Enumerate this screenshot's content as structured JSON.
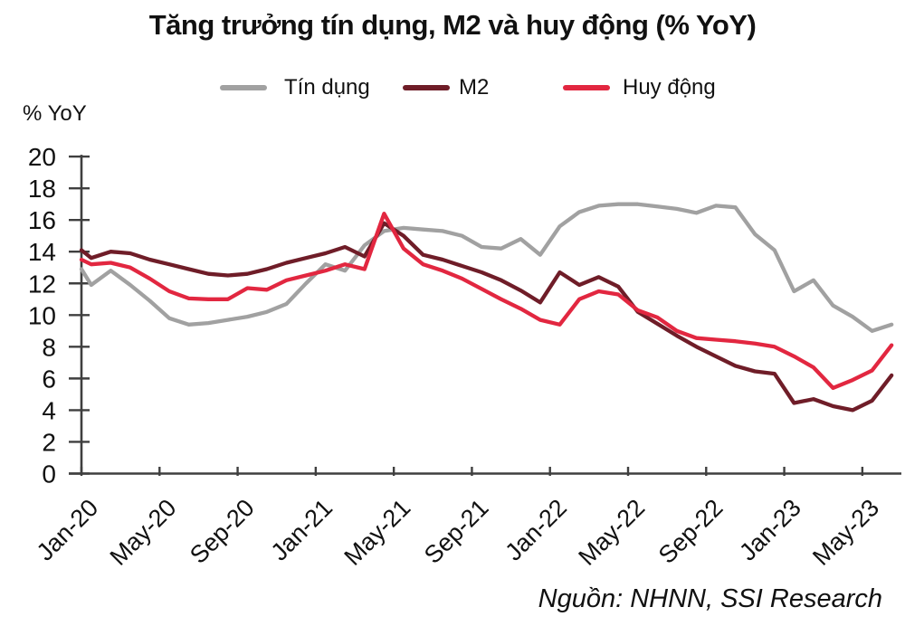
{
  "title": "Tăng trưởng tín dụng, M2 và huy động (% YoY)",
  "y_axis_label": "% YoY",
  "source": "Nguồn: NHNN, SSI Research",
  "colors": {
    "credit": "#a1a1a1",
    "m2": "#6f1d28",
    "deposit": "#e22740",
    "axis": "#3f3f3f"
  },
  "legend": [
    {
      "id": "tin-dung",
      "label": "Tín dụng",
      "color": "#a1a1a1"
    },
    {
      "id": "m2",
      "label": "M2",
      "color": "#6f1d28"
    },
    {
      "id": "huy-dong",
      "label": "Huy động",
      "color": "#e22740"
    }
  ],
  "chart_data": {
    "type": "line",
    "title": "Tăng trưởng tín dụng, M2 và huy động (% YoY)",
    "ylabel": "% YoY",
    "ylim": [
      0,
      20
    ],
    "y_ticks": [
      0,
      2,
      4,
      6,
      8,
      10,
      12,
      14,
      16,
      18,
      20
    ],
    "grid": false,
    "legend_position": "top",
    "x": [
      "Jan-20",
      "Feb-20",
      "Mar-20",
      "Apr-20",
      "May-20",
      "Jun-20",
      "Jul-20",
      "Aug-20",
      "Sep-20",
      "Oct-20",
      "Nov-20",
      "Dec-20",
      "Jan-21",
      "Feb-21",
      "Mar-21",
      "Apr-21",
      "May-21",
      "Jun-21",
      "Jul-21",
      "Aug-21",
      "Sep-21",
      "Oct-21",
      "Nov-21",
      "Dec-21",
      "Jan-22",
      "Feb-22",
      "Mar-22",
      "Apr-22",
      "May-22",
      "Jun-22",
      "Jul-22",
      "Aug-22",
      "Sep-22",
      "Oct-22",
      "Nov-22",
      "Dec-22",
      "Jan-23",
      "Feb-23",
      "Mar-23",
      "Apr-23",
      "May-23",
      "Jun-23"
    ],
    "x_tick_labels": [
      "Jan-20",
      "May-20",
      "Sep-20",
      "Jan-21",
      "May-21",
      "Sep-21",
      "Jan-22",
      "May-22",
      "Sep-22",
      "Jan-23",
      "May-23"
    ],
    "x_tick_every": 4,
    "series": [
      {
        "id": "tin-dung",
        "name": "Tín dụng",
        "color": "#a1a1a1",
        "edge_start_value": 12.9,
        "values": [
          11.9,
          12.8,
          11.9,
          10.9,
          9.8,
          9.4,
          9.5,
          9.7,
          9.9,
          10.2,
          10.7,
          12.0,
          13.2,
          12.8,
          14.4,
          15.3,
          15.5,
          15.4,
          15.3,
          15.0,
          14.3,
          14.2,
          14.8,
          13.8,
          15.6,
          16.5,
          16.9,
          17.0,
          17.0,
          16.85,
          16.7,
          16.45,
          16.9,
          16.8,
          15.1,
          14.1,
          11.5,
          12.2,
          10.6,
          9.9,
          9.0,
          9.4
        ]
      },
      {
        "id": "m2",
        "name": "M2",
        "color": "#6f1d28",
        "edge_start_value": 14.1,
        "values": [
          13.6,
          14.0,
          13.9,
          13.5,
          13.2,
          12.9,
          12.6,
          12.5,
          12.6,
          12.9,
          13.3,
          13.6,
          13.9,
          14.3,
          13.7,
          15.8,
          15.0,
          13.8,
          13.5,
          13.1,
          12.7,
          12.2,
          11.55,
          10.8,
          12.7,
          11.9,
          12.4,
          11.8,
          10.2,
          9.45,
          8.7,
          8.0,
          7.4,
          6.8,
          6.45,
          6.3,
          4.45,
          4.7,
          4.25,
          4.0,
          4.6,
          6.2
        ]
      },
      {
        "id": "huy-dong",
        "name": "Huy động",
        "color": "#e22740",
        "edge_start_value": 13.5,
        "values": [
          13.2,
          13.3,
          13.0,
          12.3,
          11.5,
          11.05,
          11.0,
          11.0,
          11.7,
          11.6,
          12.2,
          12.5,
          12.8,
          13.2,
          12.9,
          16.4,
          14.2,
          13.2,
          12.8,
          12.3,
          11.65,
          11.0,
          10.4,
          9.7,
          9.4,
          11.0,
          11.5,
          11.3,
          10.3,
          9.85,
          9.0,
          8.55,
          8.45,
          8.35,
          8.2,
          8.0,
          7.4,
          6.7,
          5.4,
          5.9,
          6.5,
          8.1
        ]
      }
    ]
  }
}
